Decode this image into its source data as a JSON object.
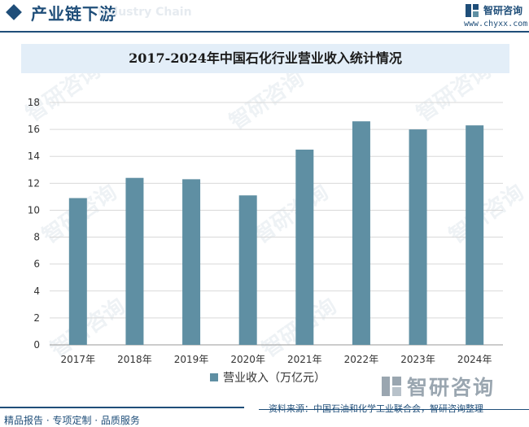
{
  "header": {
    "title": "产业链下游",
    "watermark_text": "Industry Chain",
    "brand_name": "智研咨询",
    "brand_url": "www.chyxx.com"
  },
  "chart_data": {
    "type": "bar",
    "title": "2017-2024年中国石化行业营业收入统计情况",
    "categories": [
      "2017年",
      "2018年",
      "2019年",
      "2020年",
      "2021年",
      "2022年",
      "2023年",
      "2024年"
    ],
    "series": [
      {
        "name": "营业收入（万亿元）",
        "values": [
          10.9,
          12.4,
          12.3,
          11.1,
          14.5,
          16.6,
          16.0,
          16.3
        ]
      }
    ],
    "y_ticks": [
      "0",
      "2",
      "4",
      "6",
      "8",
      "10",
      "12",
      "14",
      "16",
      "18"
    ],
    "ylim": [
      0,
      18
    ],
    "grid": true,
    "legend_position": "bottom",
    "bar_color": "#5f8fa3"
  },
  "watermark": {
    "brand_text": "智研咨询"
  },
  "footer": {
    "left_text": "精品报告 · 专项定制 · 品质服务",
    "source_text": "资料来源：中国石油和化学工业联合会，智研咨询整理"
  }
}
